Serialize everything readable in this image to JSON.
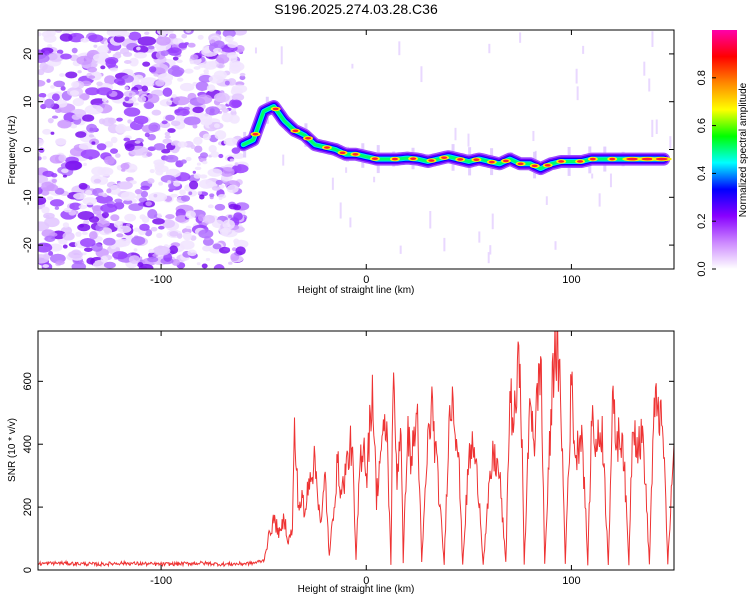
{
  "title": "S196.2025.274.03.28.C36",
  "chart_data": [
    {
      "type": "heatmap",
      "xlabel": "Height of straight line (km)",
      "ylabel": "Frequency (Hz)",
      "xlim": [
        -160,
        150
      ],
      "ylim": [
        -25,
        25
      ],
      "xticks": [
        -100,
        0,
        100
      ],
      "xtick_labels": [
        "-100",
        "0",
        "100"
      ],
      "yticks": [
        -20,
        -10,
        0,
        10,
        20
      ],
      "ytick_labels": [
        "-20",
        "-10",
        "0",
        "10",
        "20"
      ],
      "colorbar": {
        "label": "Normalized spectral amplitude",
        "range": [
          0,
          1
        ],
        "ticks": [
          0.0,
          0.2,
          0.4,
          0.6,
          0.8
        ],
        "tick_labels": [
          "0.0",
          "0.2",
          "0.4",
          "0.6",
          "0.8"
        ],
        "colors": [
          "#ffffff",
          "#cc88ff",
          "#8800ff",
          "#0000ff",
          "#00ffff",
          "#00ff00",
          "#ffff00",
          "#ff8800",
          "#ff0000",
          "#ff00aa"
        ]
      },
      "noise_region_x": [
        -160,
        -60
      ],
      "ridge": {
        "x": [
          -60,
          -55,
          -50,
          -45,
          -40,
          -35,
          -30,
          -25,
          -20,
          -15,
          -10,
          -5,
          0,
          5,
          10,
          15,
          20,
          25,
          30,
          35,
          40,
          45,
          50,
          55,
          60,
          65,
          70,
          75,
          80,
          85,
          90,
          95,
          100,
          105,
          110,
          115,
          120,
          125,
          130,
          135,
          140,
          145
        ],
        "y": [
          1,
          2,
          8,
          9,
          6,
          4,
          3,
          1,
          0.5,
          0,
          -1,
          -1,
          -1.5,
          -2,
          -2,
          -2,
          -1.8,
          -2,
          -2.5,
          -2,
          -1.5,
          -2,
          -2.5,
          -2,
          -2.5,
          -3,
          -2,
          -3,
          -3,
          -4,
          -3,
          -2.5,
          -2.5,
          -2.5,
          -2,
          -2,
          -2,
          -2,
          -2,
          -2,
          -2,
          -2
        ]
      }
    },
    {
      "type": "line",
      "xlabel": "Height of straight line (km)",
      "ylabel": "SNR (10 * v/v)",
      "xlim": [
        -160,
        150
      ],
      "ylim": [
        0,
        760
      ],
      "xticks": [
        -100,
        0,
        100
      ],
      "xtick_labels": [
        "-100",
        "0",
        "100"
      ],
      "yticks": [
        0,
        200,
        400,
        600
      ],
      "ytick_labels": [
        "0",
        "200",
        "400",
        "600"
      ],
      "color": "#ee3333",
      "series": [
        {
          "x": [
            -160,
            -150,
            -140,
            -130,
            -120,
            -110,
            -100,
            -90,
            -80,
            -70,
            -60,
            -55,
            -50,
            -47,
            -45,
            -42,
            -40,
            -38,
            -36,
            -35,
            -33,
            -31,
            -30,
            -28,
            -25,
            -22,
            -20,
            -18,
            -16,
            -14,
            -12,
            -10,
            -7,
            -5,
            -3,
            -1,
            0,
            3,
            5,
            7,
            10,
            12,
            13,
            15,
            17,
            18,
            20,
            22,
            25,
            27,
            30,
            32,
            35,
            38,
            40,
            42,
            45,
            47,
            50,
            52,
            55,
            57,
            60,
            62,
            65,
            68,
            70,
            72,
            75,
            77,
            80,
            82,
            85,
            87,
            90,
            92,
            95,
            97,
            100,
            102,
            105,
            108,
            110,
            112,
            115,
            118,
            120,
            122,
            125,
            128,
            130,
            132,
            135,
            138,
            140,
            142,
            145,
            147,
            150
          ],
          "y": [
            20,
            22,
            20,
            18,
            22,
            20,
            18,
            20,
            22,
            18,
            20,
            22,
            30,
            120,
            160,
            110,
            170,
            90,
            130,
            440,
            200,
            230,
            160,
            300,
            340,
            140,
            300,
            40,
            190,
            340,
            240,
            320,
            410,
            30,
            350,
            420,
            280,
            590,
            230,
            380,
            460,
            20,
            600,
            300,
            480,
            20,
            440,
            350,
            500,
            20,
            400,
            520,
            280,
            20,
            420,
            580,
            360,
            20,
            350,
            400,
            240,
            20,
            260,
            370,
            300,
            20,
            560,
            460,
            700,
            20,
            560,
            410,
            690,
            20,
            480,
            760,
            520,
            20,
            600,
            350,
            460,
            20,
            500,
            390,
            450,
            20,
            520,
            410,
            430,
            20,
            510,
            400,
            420,
            20,
            460,
            550,
            390,
            20,
            400
          ]
        }
      ]
    }
  ]
}
